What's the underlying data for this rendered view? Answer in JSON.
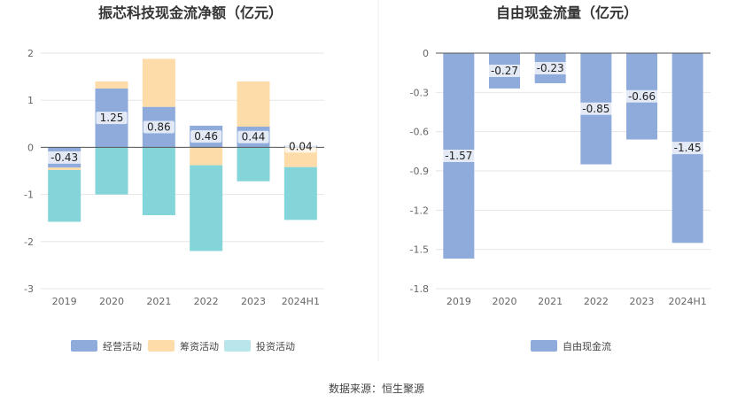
{
  "colors": {
    "operating": "#8eabdc",
    "financing": "#fedca9",
    "investing": "#84d5d9",
    "investing_legend": "#b9e6ea",
    "free_cash": "#8eabdc",
    "grid": "#e6e6e6",
    "axis": "#555555"
  },
  "source_text": "数据来源：恒生聚源",
  "chart_data": [
    {
      "type": "bar",
      "stacked": true,
      "title": "振芯科技现金流净额（亿元）",
      "categories": [
        "2019",
        "2020",
        "2021",
        "2022",
        "2023",
        "2024H1"
      ],
      "yticks": [
        "2",
        "1",
        "0",
        "-1",
        "-2",
        "-3"
      ],
      "ylim": [
        -3,
        2
      ],
      "series": [
        {
          "name": "经营活动",
          "values": [
            -0.43,
            1.25,
            0.86,
            0.46,
            0.44,
            0.04
          ],
          "labels": [
            "-0.43",
            "1.25",
            "0.86",
            "0.46",
            "0.44",
            "0.04"
          ]
        },
        {
          "name": "筹资活动",
          "values": [
            -0.05,
            0.15,
            1.02,
            -0.38,
            0.96,
            -0.42
          ]
        },
        {
          "name": "投资活动",
          "values": [
            -1.1,
            -1.0,
            -1.44,
            -1.82,
            -0.72,
            -1.12
          ]
        }
      ],
      "legend": "bottom",
      "grid": true
    },
    {
      "type": "bar",
      "title": "自由现金流量（亿元）",
      "categories": [
        "2019",
        "2020",
        "2021",
        "2022",
        "2023",
        "2024H1"
      ],
      "yticks": [
        "0",
        "-0.3",
        "-0.6",
        "-0.9",
        "-1.2",
        "-1.5",
        "-1.8"
      ],
      "ylim": [
        -1.8,
        0
      ],
      "series": [
        {
          "name": "自由现金流",
          "values": [
            -1.57,
            -0.27,
            -0.23,
            -0.85,
            -0.66,
            -1.45
          ],
          "labels": [
            "-1.57",
            "-0.27",
            "-0.23",
            "-0.85",
            "-0.66",
            "-1.45"
          ]
        }
      ],
      "legend": "bottom",
      "grid": true
    }
  ]
}
